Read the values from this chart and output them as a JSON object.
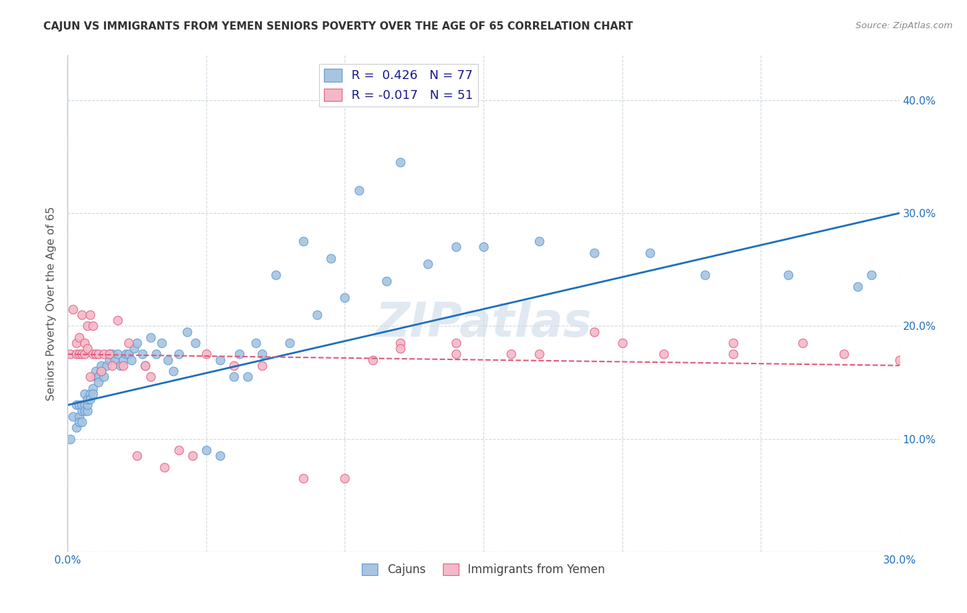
{
  "title": "CAJUN VS IMMIGRANTS FROM YEMEN SENIORS POVERTY OVER THE AGE OF 65 CORRELATION CHART",
  "source": "Source: ZipAtlas.com",
  "ylabel": "Seniors Poverty Over the Age of 65",
  "xlim": [
    0.0,
    0.3
  ],
  "ylim": [
    0.0,
    0.44
  ],
  "x_ticks": [
    0.0,
    0.05,
    0.1,
    0.15,
    0.2,
    0.25,
    0.3
  ],
  "y_ticks": [
    0.0,
    0.1,
    0.2,
    0.3,
    0.4
  ],
  "cajun_color": "#a8c4e0",
  "cajun_edge_color": "#5b9bd5",
  "yemen_color": "#f4b8c8",
  "yemen_edge_color": "#e06080",
  "line_cajun_color": "#1f6fbe",
  "line_yemen_color": "#e05878",
  "watermark": "ZIPatlas",
  "watermark_color": "#c8d8e8",
  "cajun_x": [
    0.001,
    0.002,
    0.003,
    0.003,
    0.004,
    0.004,
    0.004,
    0.005,
    0.005,
    0.005,
    0.006,
    0.006,
    0.006,
    0.007,
    0.007,
    0.007,
    0.008,
    0.008,
    0.009,
    0.009,
    0.01,
    0.01,
    0.011,
    0.011,
    0.012,
    0.012,
    0.013,
    0.014,
    0.015,
    0.015,
    0.016,
    0.017,
    0.018,
    0.019,
    0.02,
    0.021,
    0.022,
    0.023,
    0.024,
    0.025,
    0.027,
    0.028,
    0.03,
    0.032,
    0.034,
    0.036,
    0.038,
    0.04,
    0.043,
    0.046,
    0.05,
    0.055,
    0.06,
    0.065,
    0.07,
    0.08,
    0.09,
    0.1,
    0.115,
    0.13,
    0.15,
    0.17,
    0.19,
    0.21,
    0.23,
    0.26,
    0.285,
    0.29,
    0.055,
    0.062,
    0.068,
    0.075,
    0.085,
    0.095,
    0.105,
    0.12,
    0.14
  ],
  "cajun_y": [
    0.1,
    0.12,
    0.13,
    0.11,
    0.13,
    0.12,
    0.115,
    0.125,
    0.13,
    0.115,
    0.13,
    0.125,
    0.14,
    0.125,
    0.13,
    0.135,
    0.14,
    0.135,
    0.145,
    0.14,
    0.155,
    0.16,
    0.155,
    0.15,
    0.16,
    0.165,
    0.155,
    0.165,
    0.175,
    0.17,
    0.175,
    0.17,
    0.175,
    0.165,
    0.17,
    0.175,
    0.175,
    0.17,
    0.18,
    0.185,
    0.175,
    0.165,
    0.19,
    0.175,
    0.185,
    0.17,
    0.16,
    0.175,
    0.195,
    0.185,
    0.09,
    0.085,
    0.155,
    0.155,
    0.175,
    0.185,
    0.21,
    0.225,
    0.24,
    0.255,
    0.27,
    0.275,
    0.265,
    0.265,
    0.245,
    0.245,
    0.235,
    0.245,
    0.17,
    0.175,
    0.185,
    0.245,
    0.275,
    0.26,
    0.32,
    0.345,
    0.27
  ],
  "yemen_x": [
    0.001,
    0.002,
    0.003,
    0.003,
    0.004,
    0.004,
    0.005,
    0.005,
    0.006,
    0.006,
    0.007,
    0.007,
    0.008,
    0.008,
    0.009,
    0.009,
    0.01,
    0.011,
    0.012,
    0.013,
    0.015,
    0.016,
    0.018,
    0.02,
    0.022,
    0.025,
    0.028,
    0.03,
    0.035,
    0.04,
    0.045,
    0.05,
    0.06,
    0.07,
    0.085,
    0.1,
    0.12,
    0.14,
    0.16,
    0.19,
    0.215,
    0.24,
    0.265,
    0.28,
    0.3,
    0.24,
    0.2,
    0.17,
    0.14,
    0.12,
    0.11
  ],
  "yemen_y": [
    0.175,
    0.215,
    0.175,
    0.185,
    0.175,
    0.19,
    0.175,
    0.21,
    0.175,
    0.185,
    0.2,
    0.18,
    0.155,
    0.21,
    0.2,
    0.175,
    0.175,
    0.175,
    0.16,
    0.175,
    0.175,
    0.165,
    0.205,
    0.165,
    0.185,
    0.085,
    0.165,
    0.155,
    0.075,
    0.09,
    0.085,
    0.175,
    0.165,
    0.165,
    0.065,
    0.065,
    0.185,
    0.185,
    0.175,
    0.195,
    0.175,
    0.185,
    0.185,
    0.175,
    0.17,
    0.175,
    0.185,
    0.175,
    0.175,
    0.18,
    0.17
  ],
  "background_color": "#ffffff",
  "grid_color": "#d0d8e0",
  "cajun_line_start_y": 0.13,
  "cajun_line_end_y": 0.3,
  "yemen_line_start_y": 0.175,
  "yemen_line_end_y": 0.165
}
